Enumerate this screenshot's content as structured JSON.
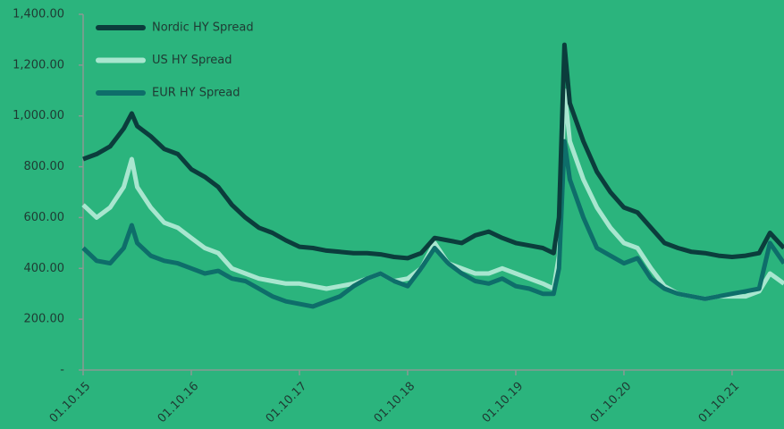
{
  "chart_data": {
    "type": "line",
    "x": [
      2015.75,
      2015.875,
      2016.0,
      2016.125,
      2016.2,
      2016.25,
      2016.375,
      2016.5,
      2016.625,
      2016.75,
      2016.875,
      2017.0,
      2017.125,
      2017.25,
      2017.375,
      2017.5,
      2017.625,
      2017.75,
      2017.875,
      2018.0,
      2018.125,
      2018.25,
      2018.375,
      2018.5,
      2018.625,
      2018.75,
      2018.875,
      2019.0,
      2019.125,
      2019.25,
      2019.375,
      2019.5,
      2019.625,
      2019.75,
      2019.875,
      2020.0,
      2020.1,
      2020.15,
      2020.2,
      2020.25,
      2020.375,
      2020.5,
      2020.625,
      2020.75,
      2020.875,
      2021.0,
      2021.125,
      2021.25,
      2021.375,
      2021.5,
      2021.625,
      2021.75,
      2021.875,
      2022.0,
      2022.1,
      2022.23
    ],
    "series": [
      {
        "name": "Nordic HY Spread",
        "color": "#0b3d3c",
        "values": [
          830,
          850,
          880,
          950,
          1010,
          960,
          920,
          870,
          850,
          790,
          760,
          720,
          650,
          600,
          560,
          540,
          510,
          485,
          480,
          470,
          465,
          460,
          460,
          455,
          445,
          440,
          460,
          520,
          510,
          500,
          530,
          545,
          520,
          500,
          490,
          480,
          460,
          600,
          1280,
          1050,
          900,
          780,
          700,
          640,
          620,
          560,
          500,
          480,
          465,
          460,
          450,
          445,
          450,
          460,
          540,
          480
        ]
      },
      {
        "name": "US HY Spread",
        "color": "#a8e6cf",
        "values": [
          650,
          600,
          640,
          720,
          830,
          720,
          640,
          580,
          560,
          520,
          480,
          460,
          400,
          380,
          360,
          350,
          340,
          340,
          330,
          320,
          330,
          340,
          360,
          380,
          350,
          360,
          400,
          500,
          420,
          400,
          380,
          380,
          400,
          380,
          360,
          340,
          320,
          450,
          1100,
          900,
          750,
          640,
          560,
          500,
          480,
          400,
          330,
          300,
          290,
          280,
          290,
          290,
          290,
          310,
          380,
          340
        ]
      },
      {
        "name": "EUR HY Spread",
        "color": "#0e6e6a",
        "values": [
          480,
          430,
          420,
          480,
          570,
          500,
          450,
          430,
          420,
          400,
          380,
          390,
          360,
          350,
          320,
          290,
          270,
          260,
          250,
          270,
          290,
          330,
          360,
          380,
          350,
          330,
          400,
          480,
          420,
          380,
          350,
          340,
          360,
          330,
          320,
          300,
          300,
          400,
          900,
          750,
          600,
          480,
          450,
          420,
          440,
          360,
          320,
          300,
          290,
          280,
          290,
          300,
          310,
          320,
          500,
          420
        ]
      }
    ],
    "xlim": [
      2015.75,
      2022.23
    ],
    "xticks": [
      {
        "value": 2015.75,
        "label": "01.10.15"
      },
      {
        "value": 2016.75,
        "label": "01.10.16"
      },
      {
        "value": 2017.75,
        "label": "01.10.17"
      },
      {
        "value": 2018.75,
        "label": "01.10.18"
      },
      {
        "value": 2019.75,
        "label": "01.10.19"
      },
      {
        "value": 2020.75,
        "label": "01.10.20"
      },
      {
        "value": 2021.75,
        "label": "01.10.21"
      }
    ],
    "ylim": [
      0,
      1400
    ],
    "yticks": [
      {
        "value": 0,
        "label": "-"
      },
      {
        "value": 200,
        "label": "200.00"
      },
      {
        "value": 400,
        "label": "400.00"
      },
      {
        "value": 600,
        "label": "600.00"
      },
      {
        "value": 800,
        "label": "800.00"
      },
      {
        "value": 1000,
        "label": "1,000.00"
      },
      {
        "value": 1200,
        "label": "1,200.00"
      },
      {
        "value": 1400,
        "label": "1,400.00"
      }
    ],
    "legend": "top-left"
  }
}
